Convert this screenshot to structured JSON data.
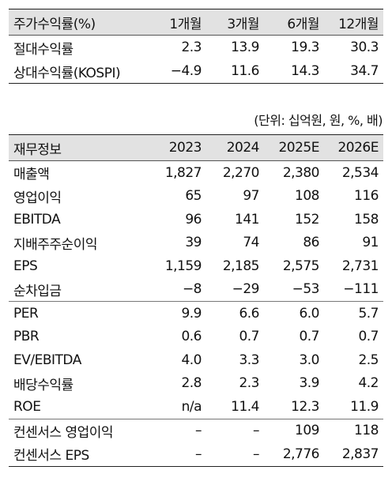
{
  "returns": {
    "header": [
      "주가수익률(%)",
      "1개월",
      "3개월",
      "6개월",
      "12개월"
    ],
    "rows": [
      {
        "label": "절대수익률",
        "values": [
          "2.3",
          "13.9",
          "19.3",
          "30.3"
        ]
      },
      {
        "label": "상대수익률(KOSPI)",
        "values": [
          "−4.9",
          "11.6",
          "14.3",
          "34.7"
        ]
      }
    ]
  },
  "unit_note": "(단위: 십억원, 원, %, 배)",
  "financials": {
    "header": [
      "재무정보",
      "2023",
      "2024",
      "2025E",
      "2026E"
    ],
    "rows": [
      {
        "label": "매출액",
        "values": [
          "1,827",
          "2,270",
          "2,380",
          "2,534"
        ]
      },
      {
        "label": "영업이익",
        "values": [
          "65",
          "97",
          "108",
          "116"
        ]
      },
      {
        "label": "EBITDA",
        "values": [
          "96",
          "141",
          "152",
          "158"
        ]
      },
      {
        "label": "지배주주순이익",
        "values": [
          "39",
          "74",
          "86",
          "91"
        ]
      },
      {
        "label": "EPS",
        "values": [
          "1,159",
          "2,185",
          "2,575",
          "2,731"
        ]
      },
      {
        "label": "순차입금",
        "values": [
          "−8",
          "−29",
          "−53",
          "−111"
        ]
      },
      {
        "label": "PER",
        "values": [
          "9.9",
          "6.6",
          "6.0",
          "5.7"
        ]
      },
      {
        "label": "PBR",
        "values": [
          "0.6",
          "0.7",
          "0.7",
          "0.7"
        ]
      },
      {
        "label": "EV/EBITDA",
        "values": [
          "4.0",
          "3.3",
          "3.0",
          "2.5"
        ]
      },
      {
        "label": "배당수익률",
        "values": [
          "2.8",
          "2.3",
          "3.9",
          "4.2"
        ]
      },
      {
        "label": "ROE",
        "values": [
          "n/a",
          "11.4",
          "12.3",
          "11.9"
        ]
      },
      {
        "label": "컨센서스 영업이익",
        "values": [
          "–",
          "–",
          "109",
          "118"
        ]
      },
      {
        "label": "컨센서스 EPS",
        "values": [
          "–",
          "–",
          "2,776",
          "2,837"
        ]
      }
    ]
  },
  "colors": {
    "header_bg": "#e2e2e2",
    "rule": "#222222"
  }
}
